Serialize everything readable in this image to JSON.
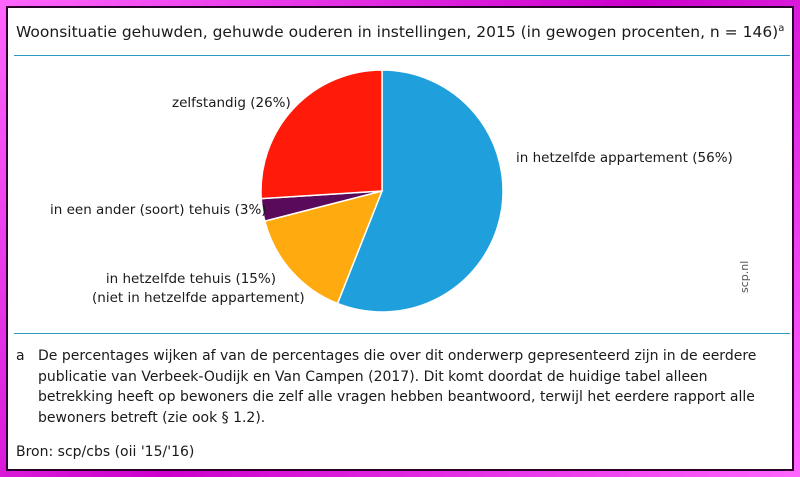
{
  "title": "Woonsituatie gehuwden, gehuwde ouderen in instellingen, 2015 (in gewogen procenten, n = 146)",
  "title_sup": "a",
  "chart_data": {
    "type": "pie",
    "title": "Woonsituatie gehuwden, gehuwde ouderen in instellingen, 2015 (in gewogen procenten, n = 146)",
    "slices": [
      {
        "label": "in hetzelfde appartement (56%)",
        "value": 56,
        "color": "#1fa0dc"
      },
      {
        "label": "in hetzelfde tehuis (15%)",
        "label2": "(niet in hetzelfde appartement)",
        "value": 15,
        "color": "#ffab0f"
      },
      {
        "label": "in een ander (soort) tehuis (3%)",
        "value": 3,
        "color": "#5a0a5a"
      },
      {
        "label": "zelfstandig (26%)",
        "value": 26,
        "color": "#ff1a0a"
      }
    ]
  },
  "watermark": "scp.nl",
  "footnote": {
    "mark": "a",
    "text": "De percentages wijken af van de percentages die over dit onderwerp gepresenteerd zijn in de eerdere publicatie van Verbeek-Oudijk en Van Campen (2017). Dit komt doordat de huidige tabel alleen betrekking heeft op bewoners die zelf alle vragen hebben beantwoord, terwijl het eerdere rapport alle bewoners betreft (zie ook § 1.2)."
  },
  "source": "Bron: scp/cbs (oii '15/'16)"
}
